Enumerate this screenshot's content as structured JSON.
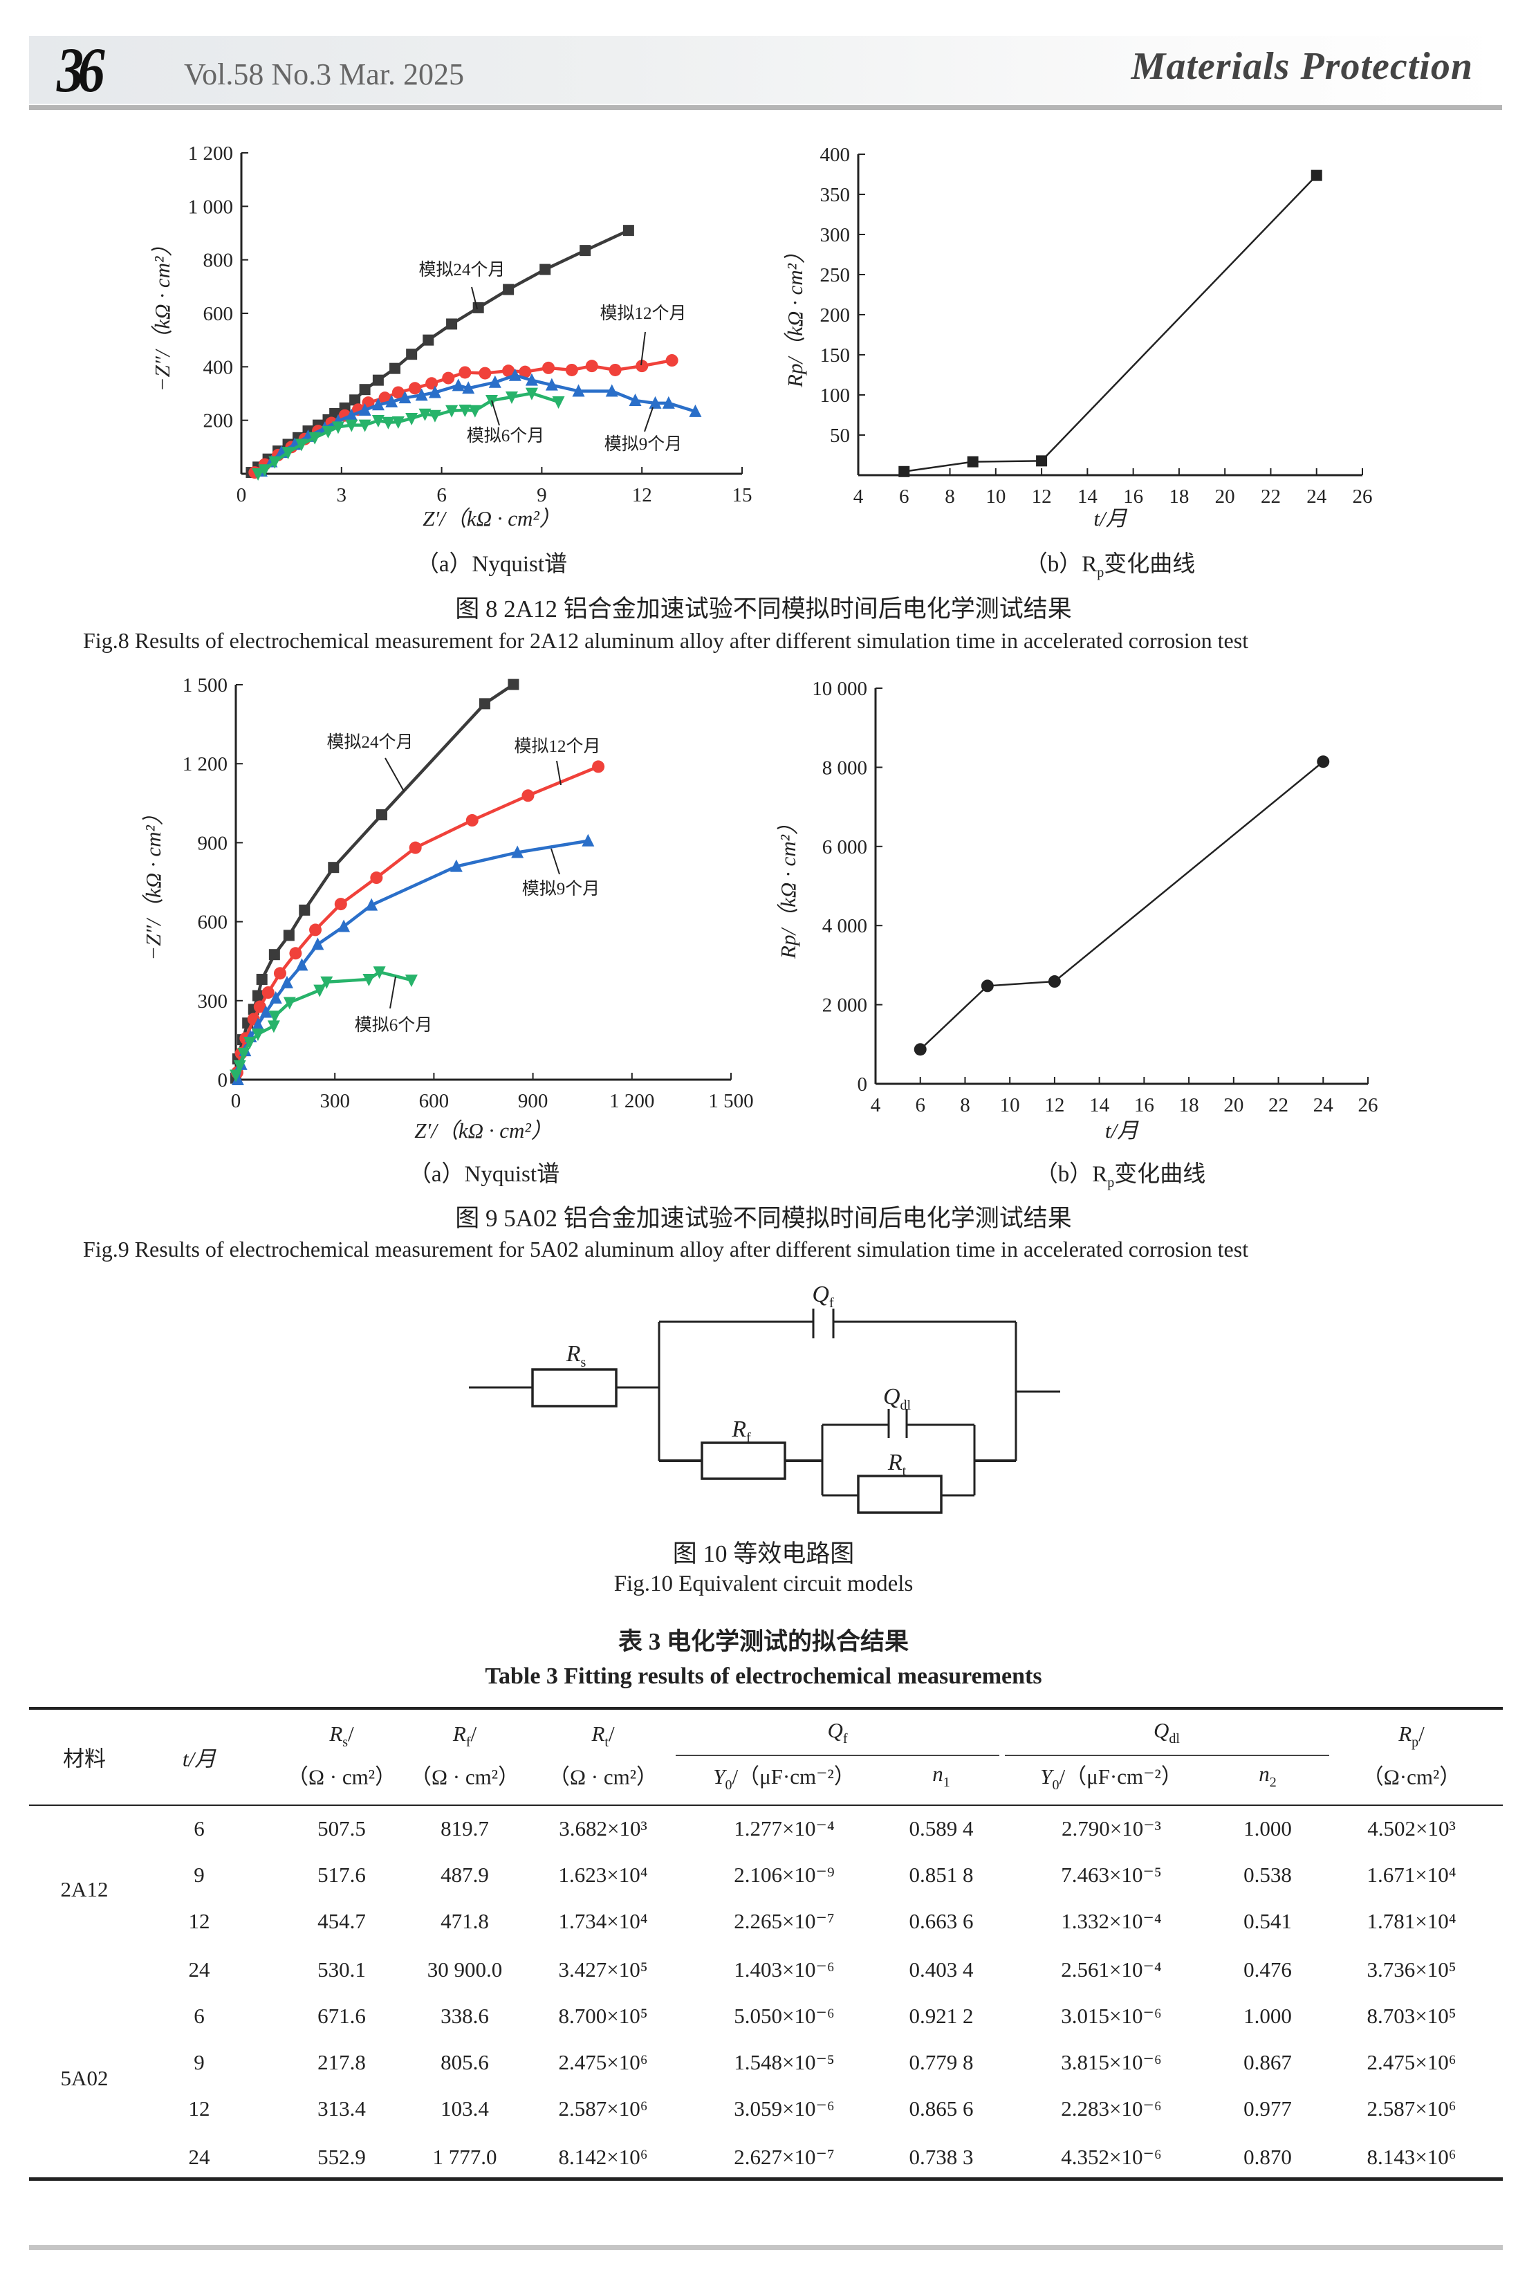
{
  "header": {
    "page_number": "36",
    "issue": "Vol.58 No.3  Mar. 2025",
    "journal": "Materials Protection"
  },
  "colors": {
    "series_24": "#3b3b3b",
    "series_12": "#f0413a",
    "series_9": "#2a6fc9",
    "series_6": "#27b36a"
  },
  "fig8": {
    "caption_a": "（a）Nyquist谱",
    "caption_b_main": "（b）R",
    "caption_b_sub": "p",
    "caption_b_rest": "变化曲线",
    "title_cn": "图 8    2A12 铝合金加速试验不同模拟时间后电化学测试结果",
    "title_en": "Fig.8    Results of electrochemical measurement for 2A12 aluminum alloy after different simulation time in accelerated corrosion test"
  },
  "fig9": {
    "caption_a": "（a）Nyquist谱",
    "caption_b_main": "（b）R",
    "caption_b_sub": "p",
    "caption_b_rest": "变化曲线",
    "title_cn": "图 9    5A02 铝合金加速试验不同模拟时间后电化学测试结果",
    "title_en": "Fig.9    Results of electrochemical measurement for 5A02 aluminum alloy after different simulation time in accelerated corrosion test"
  },
  "chart_data": [
    {
      "id": "fig8a",
      "type": "line",
      "xlabel": "Z′/（kΩ · cm²）",
      "ylabel": "−Z″/（kΩ · cm²）",
      "xlim": [
        0,
        15
      ],
      "ylim": [
        0,
        1200
      ],
      "xticks": [
        "0",
        "3",
        "6",
        "9",
        "12",
        "15"
      ],
      "yticks": [
        "200",
        "400",
        "600",
        "800",
        "1 000",
        "1 200"
      ],
      "xtick_values": [
        0,
        3,
        6,
        9,
        12,
        15
      ],
      "ytick_values": [
        200,
        400,
        600,
        800,
        1000,
        1200
      ],
      "grid": false,
      "series": [
        {
          "name": "模拟24个月",
          "marker": "square",
          "color": "#3b3b3b",
          "x": [
            0.3,
            0.5,
            0.8,
            1.1,
            1.4,
            1.7,
            2.0,
            2.3,
            2.6,
            2.8,
            3.1,
            3.4,
            3.7,
            4.1,
            4.6,
            5.1,
            5.6,
            6.3,
            7.1,
            8.0,
            9.1,
            10.3,
            11.6
          ],
          "y": [
            5,
            25,
            55,
            85,
            110,
            135,
            160,
            182,
            202,
            225,
            246,
            276,
            315,
            350,
            394,
            447,
            500,
            560,
            621,
            689,
            764,
            835,
            910
          ]
        },
        {
          "name": "模拟12个月",
          "marker": "circle",
          "color": "#f0413a",
          "x": [
            0.4,
            0.7,
            1.1,
            1.5,
            1.9,
            2.3,
            2.7,
            3.1,
            3.5,
            3.8,
            4.3,
            4.7,
            5.2,
            5.7,
            6.2,
            6.7,
            7.3,
            8.0,
            8.5,
            9.2,
            9.9,
            10.5,
            11.2,
            12.0,
            12.9
          ],
          "y": [
            5,
            35,
            70,
            100,
            130,
            160,
            190,
            218,
            240,
            266,
            284,
            304,
            320,
            338,
            358,
            379,
            376,
            385,
            381,
            396,
            388,
            403,
            388,
            403,
            424
          ]
        },
        {
          "name": "模拟9个月",
          "marker": "triangle-up",
          "color": "#2a6fc9",
          "x": [
            0.6,
            0.9,
            1.2,
            1.6,
            2.0,
            2.5,
            2.9,
            3.3,
            3.7,
            4.1,
            4.5,
            4.9,
            5.4,
            5.8,
            6.5,
            6.8,
            7.6,
            8.2,
            8.7,
            9.3,
            10.1,
            11.1,
            11.8,
            12.4,
            12.8,
            13.6
          ],
          "y": [
            10,
            45,
            80,
            110,
            140,
            170,
            197,
            218,
            238,
            258,
            269,
            284,
            294,
            304,
            330,
            320,
            342,
            368,
            350,
            332,
            309,
            309,
            274,
            264,
            264,
            233
          ]
        },
        {
          "name": "模拟6个月",
          "marker": "triangle-down",
          "color": "#27b36a",
          "x": [
            0.5,
            0.7,
            1.0,
            1.4,
            1.8,
            2.2,
            2.6,
            2.9,
            3.3,
            3.7,
            4.1,
            4.4,
            4.7,
            5.1,
            5.5,
            5.8,
            6.3,
            6.7,
            7.0,
            7.5,
            8.1,
            8.7,
            9.5
          ],
          "y": [
            0,
            15,
            45,
            80,
            110,
            135,
            158,
            175,
            182,
            182,
            199,
            192,
            194,
            207,
            223,
            218,
            236,
            238,
            236,
            274,
            287,
            301,
            269
          ]
        }
      ]
    },
    {
      "id": "fig8b",
      "type": "line",
      "xlabel": "t/月",
      "ylabel": "Rp/（kΩ · cm²）",
      "xlim": [
        4,
        26
      ],
      "ylim": [
        0,
        400
      ],
      "xticks": [
        "4",
        "6",
        "8",
        "10",
        "12",
        "14",
        "16",
        "18",
        "20",
        "22",
        "24",
        "26"
      ],
      "yticks": [
        "50",
        "100",
        "150",
        "200",
        "250",
        "300",
        "350",
        "400"
      ],
      "xtick_values": [
        4,
        6,
        8,
        10,
        12,
        14,
        16,
        18,
        20,
        22,
        24,
        26
      ],
      "ytick_values": [
        50,
        100,
        150,
        200,
        250,
        300,
        350,
        400
      ],
      "grid": false,
      "series": [
        {
          "marker": "square",
          "color": "#222222",
          "x": [
            6,
            9,
            12,
            24
          ],
          "y": [
            4.5,
            16.7,
            17.8,
            373.6
          ]
        }
      ]
    },
    {
      "id": "fig9a",
      "type": "line",
      "xlabel": "Z′/（kΩ · cm²）",
      "ylabel": "−Z″/（kΩ · cm²）",
      "xlim": [
        0,
        1500
      ],
      "ylim": [
        0,
        1500
      ],
      "xticks": [
        "0",
        "300",
        "600",
        "900",
        "1 200",
        "1 500"
      ],
      "yticks": [
        "0",
        "300",
        "600",
        "900",
        "1 200",
        "1 500"
      ],
      "xtick_values": [
        0,
        300,
        600,
        900,
        1200,
        1500
      ],
      "ytick_values": [
        0,
        300,
        600,
        900,
        1200,
        1500
      ],
      "grid": false,
      "series": [
        {
          "name": "模拟24个月",
          "marker": "square",
          "color": "#3b3b3b",
          "x": [
            0,
            6,
            21,
            36,
            54,
            67,
            79,
            117,
            161,
            208,
            296,
            442,
            754,
            841
          ],
          "y": [
            6,
            79,
            152,
            215,
            267,
            319,
            381,
            475,
            548,
            644,
            806,
            1006,
            1428,
            1501
          ]
        },
        {
          "name": "模拟12个月",
          "marker": "circle",
          "color": "#f0413a",
          "x": [
            4,
            16,
            30,
            54,
            73,
            98,
            134,
            181,
            241,
            318,
            426,
            544,
            716,
            885,
            1098
          ],
          "y": [
            27,
            100,
            157,
            230,
            277,
            331,
            404,
            480,
            569,
            667,
            767,
            881,
            985,
            1079,
            1189
          ]
        },
        {
          "name": "模拟9个月",
          "marker": "triangle-up",
          "color": "#2a6fc9",
          "x": [
            6,
            16,
            28,
            45,
            67,
            91,
            121,
            155,
            200,
            248,
            327,
            411,
            668,
            853,
            1067
          ],
          "y": [
            0,
            58,
            110,
            163,
            209,
            256,
            310,
            368,
            435,
            514,
            582,
            663,
            810,
            863,
            907
          ]
        },
        {
          "name": "模拟6个月",
          "marker": "triangle-down",
          "color": "#27b36a",
          "x": [
            0,
            12,
            24,
            42,
            67,
            115,
            118,
            163,
            254,
            275,
            403,
            435,
            532
          ],
          "y": [
            17,
            53,
            100,
            142,
            173,
            204,
            241,
            293,
            340,
            371,
            381,
            409,
            378
          ]
        }
      ]
    },
    {
      "id": "fig9b",
      "type": "line",
      "xlabel": "t/月",
      "ylabel": "Rp/（kΩ · cm²）",
      "xlim": [
        4,
        26
      ],
      "ylim": [
        0,
        10000
      ],
      "xticks": [
        "4",
        "6",
        "8",
        "10",
        "12",
        "14",
        "16",
        "18",
        "20",
        "22",
        "24",
        "26"
      ],
      "yticks": [
        "0",
        "2 000",
        "4 000",
        "6 000",
        "8 000",
        "10 000"
      ],
      "xtick_values": [
        4,
        6,
        8,
        10,
        12,
        14,
        16,
        18,
        20,
        22,
        24,
        26
      ],
      "ytick_values": [
        0,
        2000,
        4000,
        6000,
        8000,
        10000
      ],
      "grid": false,
      "series": [
        {
          "marker": "circle",
          "color": "#222222",
          "x": [
            6,
            9,
            12,
            24
          ],
          "y": [
            870,
            2475,
            2587,
            8143
          ]
        }
      ]
    }
  ],
  "fig10": {
    "labels": {
      "rs": "R",
      "rs_sub": "s",
      "qf": "Q",
      "qf_sub": "f",
      "rf": "R",
      "rf_sub": "f",
      "qdl": "Q",
      "qdl_sub": "dl",
      "rt": "R",
      "rt_sub": "t"
    },
    "title_cn": "图 10    等效电路图",
    "title_en": "Fig.10    Equivalent circuit models"
  },
  "table3": {
    "title_cn": "表 3    电化学测试的拟合结果",
    "title_en": "Table 3    Fitting results of electrochemical measurements",
    "headers": {
      "material": "材料",
      "t": "t/月",
      "rs": "R",
      "rs_sub": "s",
      "rf": "R",
      "rf_sub": "f",
      "rt": "R",
      "rt_sub": "t",
      "rp": "R",
      "rp_sub": "p",
      "slash": "/",
      "unit": "（Ω · cm²）",
      "unit_rp": "（Ω·cm²）",
      "qf": "Q",
      "qf_sub": "f",
      "qdl": "Q",
      "qdl_sub": "dl",
      "y0": "Y",
      "y0_sub": "0",
      "y0_unit": "/（μF·cm⁻²）",
      "n1": "n",
      "n1_sub": "1",
      "n2": "n",
      "n2_sub": "2"
    },
    "groups": [
      {
        "material": "2A12",
        "rows": [
          {
            "t": "6",
            "rs": "507.5",
            "rf": "819.7",
            "rt": "3.682×10³",
            "qf_y0": "1.277×10⁻⁴",
            "n1": "0.589 4",
            "qdl_y0": "2.790×10⁻³",
            "n2": "1.000",
            "rp": "4.502×10³"
          },
          {
            "t": "9",
            "rs": "517.6",
            "rf": "487.9",
            "rt": "1.623×10⁴",
            "qf_y0": "2.106×10⁻⁹",
            "n1": "0.851 8",
            "qdl_y0": "7.463×10⁻⁵",
            "n2": "0.538",
            "rp": "1.671×10⁴"
          },
          {
            "t": "12",
            "rs": "454.7",
            "rf": "471.8",
            "rt": "1.734×10⁴",
            "qf_y0": "2.265×10⁻⁷",
            "n1": "0.663 6",
            "qdl_y0": "1.332×10⁻⁴",
            "n2": "0.541",
            "rp": "1.781×10⁴"
          },
          {
            "t": "24",
            "rs": "530.1",
            "rf": "30 900.0",
            "rt": "3.427×10⁵",
            "qf_y0": "1.403×10⁻⁶",
            "n1": "0.403 4",
            "qdl_y0": "2.561×10⁻⁴",
            "n2": "0.476",
            "rp": "3.736×10⁵"
          }
        ]
      },
      {
        "material": "5A02",
        "rows": [
          {
            "t": "6",
            "rs": "671.6",
            "rf": "338.6",
            "rt": "8.700×10⁵",
            "qf_y0": "5.050×10⁻⁶",
            "n1": "0.921 2",
            "qdl_y0": "3.015×10⁻⁶",
            "n2": "1.000",
            "rp": "8.703×10⁵"
          },
          {
            "t": "9",
            "rs": "217.8",
            "rf": "805.6",
            "rt": "2.475×10⁶",
            "qf_y0": "1.548×10⁻⁵",
            "n1": "0.779 8",
            "qdl_y0": "3.815×10⁻⁶",
            "n2": "0.867",
            "rp": "2.475×10⁶"
          },
          {
            "t": "12",
            "rs": "313.4",
            "rf": "103.4",
            "rt": "2.587×10⁶",
            "qf_y0": "3.059×10⁻⁶",
            "n1": "0.865 6",
            "qdl_y0": "2.283×10⁻⁶",
            "n2": "0.977",
            "rp": "2.587×10⁶"
          },
          {
            "t": "24",
            "rs": "552.9",
            "rf": "1 777.0",
            "rt": "8.142×10⁶",
            "qf_y0": "2.627×10⁻⁷",
            "n1": "0.738 3",
            "qdl_y0": "4.352×10⁻⁶",
            "n2": "0.870",
            "rp": "8.143×10⁶"
          }
        ]
      }
    ]
  }
}
